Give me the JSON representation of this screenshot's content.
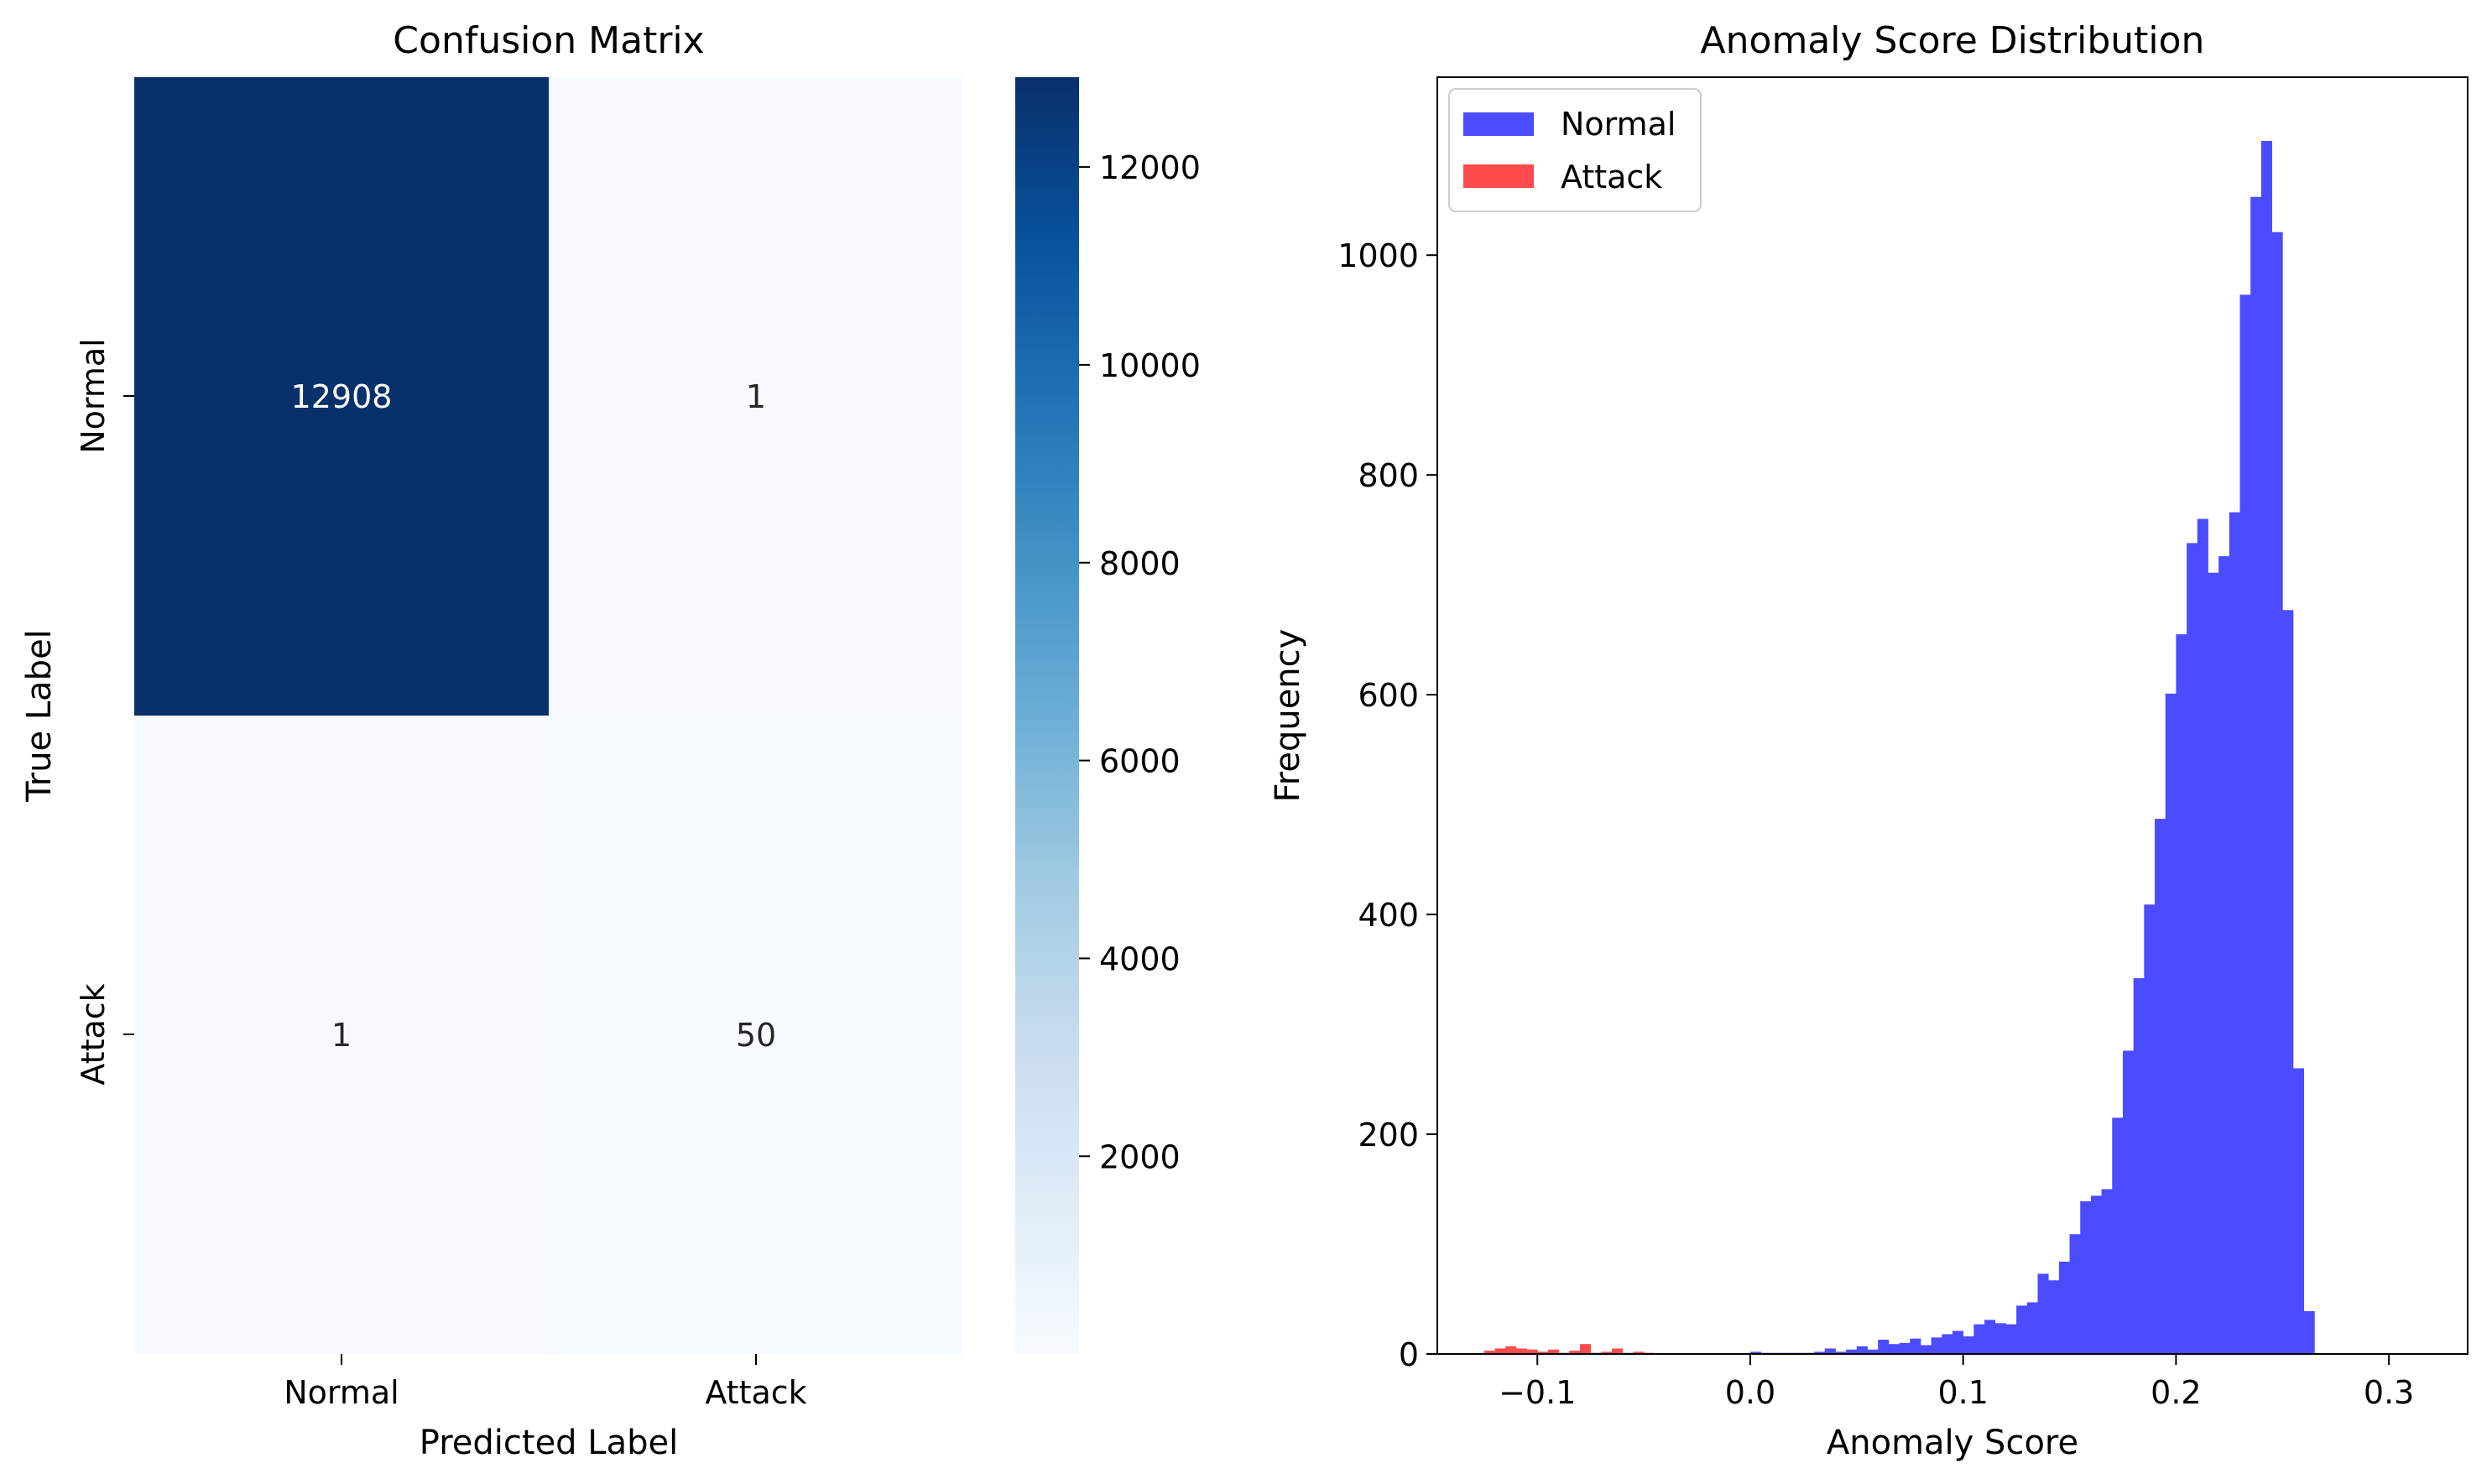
{
  "chart_data": [
    {
      "type": "heatmap",
      "title": "Confusion Matrix",
      "xlabel": "Predicted Label",
      "ylabel": "True Label",
      "x_categories": [
        "Normal",
        "Attack"
      ],
      "y_categories": [
        "Normal",
        "Attack"
      ],
      "values": [
        [
          12908,
          1
        ],
        [
          1,
          50
        ]
      ],
      "colormap": "Blues",
      "colorbar": {
        "range": [
          1,
          12908
        ],
        "ticks": [
          2000,
          4000,
          6000,
          8000,
          10000,
          12000
        ],
        "tick_labels": [
          "2000",
          "4000",
          "6000",
          "8000",
          "10000",
          "12000"
        ]
      }
    },
    {
      "type": "bar",
      "subtype": "histogram",
      "title": "Anomaly Score Distribution",
      "xlabel": "Anomaly Score",
      "ylabel": "Frequency",
      "xlim": [
        -0.147,
        0.337
      ],
      "ylim": [
        0,
        1162
      ],
      "xticks": [
        -0.1,
        0.0,
        0.1,
        0.2,
        0.3
      ],
      "xtick_labels": [
        "−0.1",
        "0.0",
        "0.1",
        "0.2",
        "0.3"
      ],
      "yticks": [
        0,
        200,
        400,
        600,
        800,
        1000
      ],
      "ytick_labels": [
        "0",
        "200",
        "400",
        "600",
        "800",
        "1000"
      ],
      "legend_position": "upper-left",
      "bin_width": 0.005,
      "series": [
        {
          "name": "Normal",
          "color": "#4b4bff",
          "start": 0.0,
          "values": [
            2,
            1,
            1,
            1,
            1,
            1,
            2,
            5,
            2,
            4,
            7,
            4,
            13,
            9,
            10,
            14,
            8,
            15,
            18,
            21,
            16,
            27,
            31,
            28,
            27,
            44,
            47,
            73,
            67,
            84,
            109,
            139,
            144,
            150,
            215,
            276,
            342,
            409,
            487,
            601,
            655,
            738,
            760,
            711,
            726,
            766,
            964,
            1053,
            1104,
            1021,
            677,
            260,
            39
          ]
        },
        {
          "name": "Attack",
          "color": "#ff4b4b",
          "start": -0.125,
          "values": [
            3,
            5,
            7,
            5,
            4,
            2,
            4,
            1,
            3,
            9,
            1,
            2,
            5,
            1,
            2,
            1
          ]
        }
      ]
    }
  ]
}
